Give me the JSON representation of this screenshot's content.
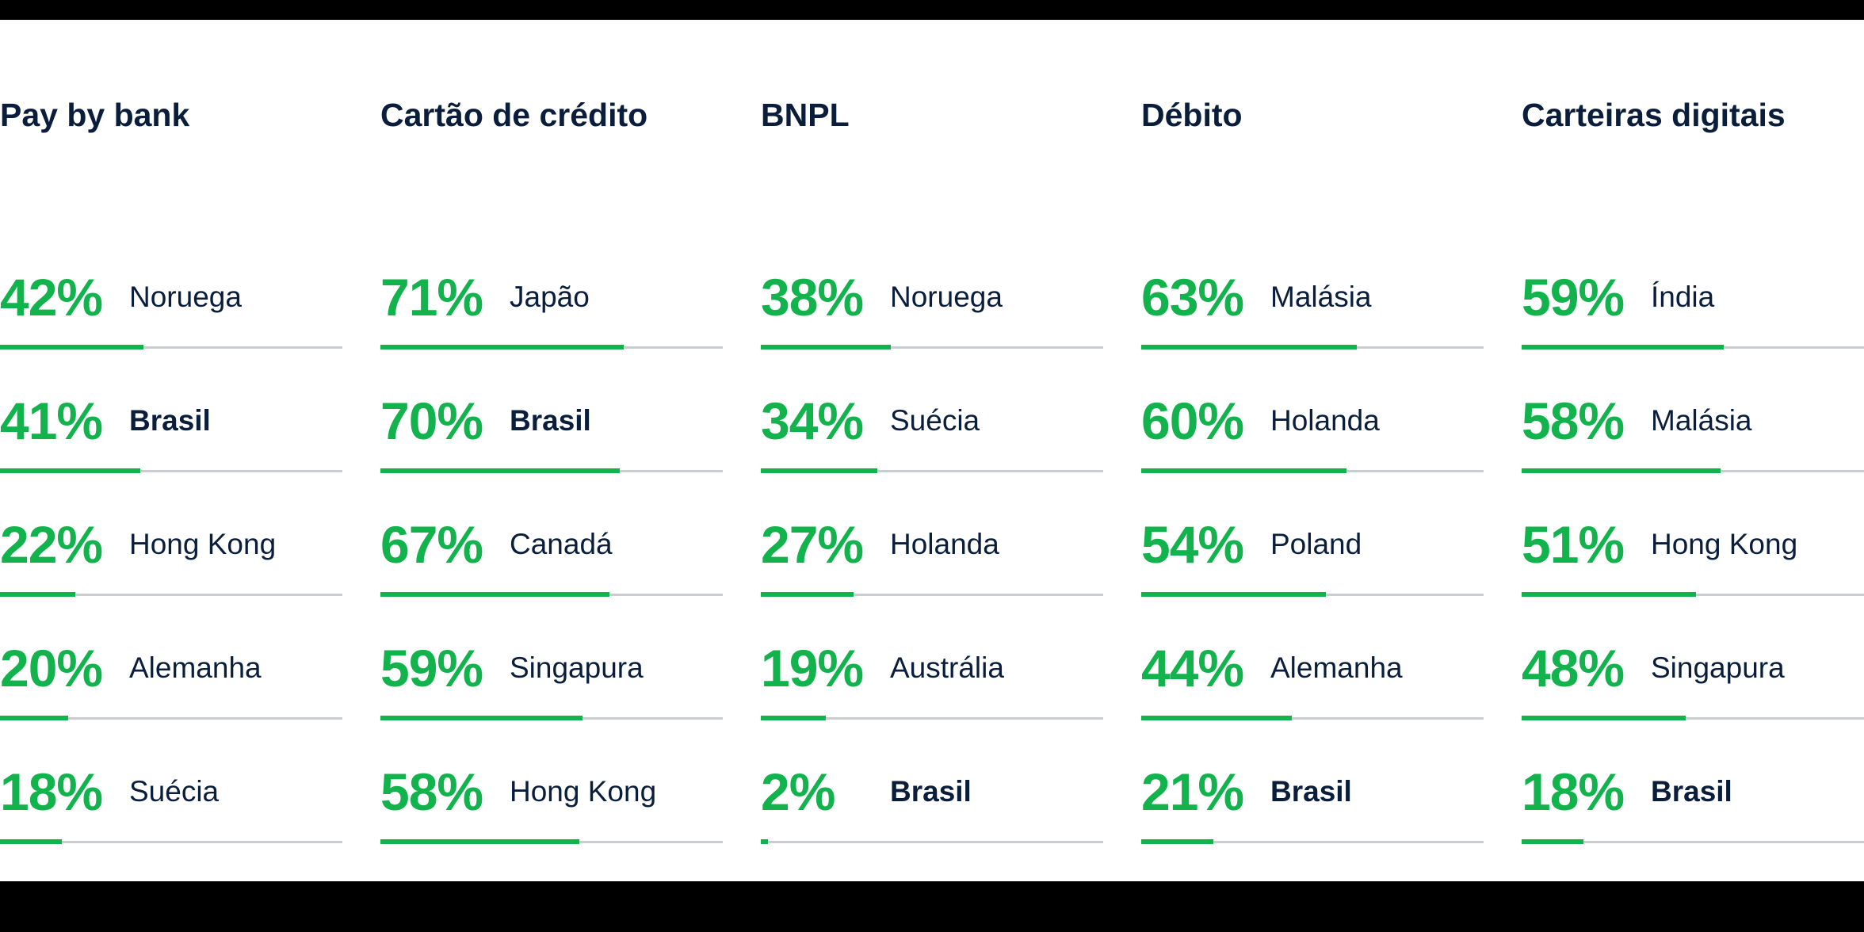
{
  "colors": {
    "background": "#ffffff",
    "frame_black": "#000000",
    "green": "#12b24c",
    "navy": "#0a1e3c",
    "track_gray": "#c9cdd2"
  },
  "columns": [
    {
      "title": "Pay by bank",
      "rows": [
        {
          "pct": "42%",
          "value": 42,
          "country": "Noruega",
          "bold": false
        },
        {
          "pct": "41%",
          "value": 41,
          "country": "Brasil",
          "bold": true
        },
        {
          "pct": "22%",
          "value": 22,
          "country": "Hong Kong",
          "bold": false
        },
        {
          "pct": "20%",
          "value": 20,
          "country": "Alemanha",
          "bold": false
        },
        {
          "pct": "18%",
          "value": 18,
          "country": "Suécia",
          "bold": false
        }
      ]
    },
    {
      "title": "Cartão de crédito",
      "rows": [
        {
          "pct": "71%",
          "value": 71,
          "country": "Japão",
          "bold": false
        },
        {
          "pct": "70%",
          "value": 70,
          "country": "Brasil",
          "bold": true
        },
        {
          "pct": "67%",
          "value": 67,
          "country": "Canadá",
          "bold": false
        },
        {
          "pct": "59%",
          "value": 59,
          "country": "Singapura",
          "bold": false
        },
        {
          "pct": "58%",
          "value": 58,
          "country": "Hong Kong",
          "bold": false
        }
      ]
    },
    {
      "title": "BNPL",
      "rows": [
        {
          "pct": "38%",
          "value": 38,
          "country": "Noruega",
          "bold": false
        },
        {
          "pct": "34%",
          "value": 34,
          "country": "Suécia",
          "bold": false
        },
        {
          "pct": "27%",
          "value": 27,
          "country": "Holanda",
          "bold": false
        },
        {
          "pct": "19%",
          "value": 19,
          "country": "Austrália",
          "bold": false
        },
        {
          "pct": "2%",
          "value": 2,
          "country": "Brasil",
          "bold": true
        }
      ]
    },
    {
      "title": "Débito",
      "rows": [
        {
          "pct": "63%",
          "value": 63,
          "country": "Malásia",
          "bold": false
        },
        {
          "pct": "60%",
          "value": 60,
          "country": "Holanda",
          "bold": false
        },
        {
          "pct": "54%",
          "value": 54,
          "country": "Poland",
          "bold": false
        },
        {
          "pct": "44%",
          "value": 44,
          "country": "Alemanha",
          "bold": false
        },
        {
          "pct": "21%",
          "value": 21,
          "country": "Brasil",
          "bold": true
        }
      ]
    },
    {
      "title": "Carteiras digitais",
      "rows": [
        {
          "pct": "59%",
          "value": 59,
          "country": "Índia",
          "bold": false
        },
        {
          "pct": "58%",
          "value": 58,
          "country": "Malásia",
          "bold": false
        },
        {
          "pct": "51%",
          "value": 51,
          "country": "Hong Kong",
          "bold": false
        },
        {
          "pct": "48%",
          "value": 48,
          "country": "Singapura",
          "bold": false
        },
        {
          "pct": "18%",
          "value": 18,
          "country": "Brasil",
          "bold": true
        }
      ]
    }
  ],
  "chart_data": [
    {
      "type": "bar",
      "title": "Pay by bank",
      "categories": [
        "Noruega",
        "Brasil",
        "Hong Kong",
        "Alemanha",
        "Suécia"
      ],
      "values": [
        42,
        41,
        22,
        20,
        18
      ],
      "unit": "%",
      "xlim": [
        0,
        100
      ],
      "orientation": "horizontal",
      "bar_color": "#12b24c",
      "track_color": "#c9cdd2"
    },
    {
      "type": "bar",
      "title": "Cartão de crédito",
      "categories": [
        "Japão",
        "Brasil",
        "Canadá",
        "Singapura",
        "Hong Kong"
      ],
      "values": [
        71,
        70,
        67,
        59,
        58
      ],
      "unit": "%",
      "xlim": [
        0,
        100
      ],
      "orientation": "horizontal",
      "bar_color": "#12b24c",
      "track_color": "#c9cdd2"
    },
    {
      "type": "bar",
      "title": "BNPL",
      "categories": [
        "Noruega",
        "Suécia",
        "Holanda",
        "Austrália",
        "Brasil"
      ],
      "values": [
        38,
        34,
        27,
        19,
        2
      ],
      "unit": "%",
      "xlim": [
        0,
        100
      ],
      "orientation": "horizontal",
      "bar_color": "#12b24c",
      "track_color": "#c9cdd2"
    },
    {
      "type": "bar",
      "title": "Débito",
      "categories": [
        "Malásia",
        "Holanda",
        "Poland",
        "Alemanha",
        "Brasil"
      ],
      "values": [
        63,
        60,
        54,
        44,
        21
      ],
      "unit": "%",
      "xlim": [
        0,
        100
      ],
      "orientation": "horizontal",
      "bar_color": "#12b24c",
      "track_color": "#c9cdd2"
    },
    {
      "type": "bar",
      "title": "Carteiras digitais",
      "categories": [
        "Índia",
        "Malásia",
        "Hong Kong",
        "Singapura",
        "Brasil"
      ],
      "values": [
        59,
        58,
        51,
        48,
        18
      ],
      "unit": "%",
      "xlim": [
        0,
        100
      ],
      "orientation": "horizontal",
      "bar_color": "#12b24c",
      "track_color": "#c9cdd2"
    }
  ]
}
